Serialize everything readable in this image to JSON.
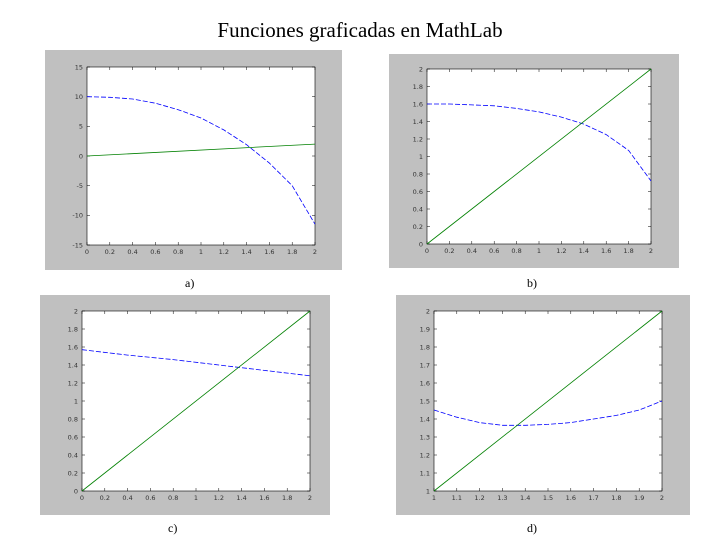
{
  "page": {
    "title": "Funciones graficadas en MathLab"
  },
  "chart_data": [
    {
      "type": "line",
      "caption": "a)",
      "xlim": [
        0,
        2
      ],
      "ylim": [
        -15,
        15
      ],
      "xticks": [
        0,
        0.2,
        0.4,
        0.6,
        0.8,
        1,
        1.2,
        1.4,
        1.6,
        1.8,
        2
      ],
      "xtick_labels": [
        "0",
        "0.2",
        "0.4",
        "0.6",
        "0.8",
        "1",
        "1.2",
        "1.4",
        "1.6",
        "1.8",
        "2"
      ],
      "yticks": [
        -15,
        -10,
        -5,
        0,
        5,
        10,
        15
      ],
      "ytick_labels": [
        "-15",
        "-10",
        "-5",
        "0",
        "5",
        "10",
        "15"
      ],
      "grid": false,
      "series": [
        {
          "color": "#0000ff",
          "style": "dashed",
          "x": [
            0,
            0.2,
            0.4,
            0.6,
            0.8,
            1.0,
            1.2,
            1.4,
            1.6,
            1.8,
            2.0
          ],
          "y": [
            10.0,
            9.9,
            9.6,
            8.9,
            7.8,
            6.4,
            4.4,
            1.9,
            -1.2,
            -5.0,
            -11.5
          ]
        },
        {
          "color": "#008000",
          "style": "solid",
          "x": [
            0,
            2
          ],
          "y": [
            0,
            2
          ]
        }
      ]
    },
    {
      "type": "line",
      "caption": "b)",
      "xlim": [
        0,
        2
      ],
      "ylim": [
        0,
        2
      ],
      "xticks": [
        0,
        0.2,
        0.4,
        0.6,
        0.8,
        1,
        1.2,
        1.4,
        1.6,
        1.8,
        2
      ],
      "xtick_labels": [
        "0",
        "0.2",
        "0.4",
        "0.6",
        "0.8",
        "1",
        "1.2",
        "1.4",
        "1.6",
        "1.8",
        "2"
      ],
      "yticks": [
        0,
        0.2,
        0.4,
        0.6,
        0.8,
        1,
        1.2,
        1.4,
        1.6,
        1.8,
        2
      ],
      "ytick_labels": [
        "0",
        "0.2",
        "0.4",
        "0.6",
        "0.8",
        "1",
        "1.2",
        "1.4",
        "1.6",
        "1.8",
        "2"
      ],
      "grid": false,
      "series": [
        {
          "color": "#0000ff",
          "style": "dashed",
          "x": [
            0,
            0.2,
            0.4,
            0.6,
            0.8,
            1.0,
            1.2,
            1.4,
            1.6,
            1.8,
            2.0
          ],
          "y": [
            1.6,
            1.6,
            1.59,
            1.58,
            1.55,
            1.51,
            1.45,
            1.37,
            1.25,
            1.07,
            0.72
          ]
        },
        {
          "color": "#008000",
          "style": "solid",
          "x": [
            0,
            2
          ],
          "y": [
            0,
            2
          ]
        }
      ]
    },
    {
      "type": "line",
      "caption": "c)",
      "xlim": [
        0,
        2
      ],
      "ylim": [
        0,
        2
      ],
      "xticks": [
        0,
        0.2,
        0.4,
        0.6,
        0.8,
        1,
        1.2,
        1.4,
        1.6,
        1.8,
        2
      ],
      "xtick_labels": [
        "0",
        "0.2",
        "0.4",
        "0.6",
        "0.8",
        "1",
        "1.2",
        "1.4",
        "1.6",
        "1.8",
        "2"
      ],
      "yticks": [
        0,
        0.2,
        0.4,
        0.6,
        0.8,
        1,
        1.2,
        1.4,
        1.6,
        1.8,
        2
      ],
      "ytick_labels": [
        "0",
        "0.2",
        "0.4",
        "0.6",
        "0.8",
        "1",
        "1.2",
        "1.4",
        "1.6",
        "1.8",
        "2"
      ],
      "grid": false,
      "series": [
        {
          "color": "#0000ff",
          "style": "dashed",
          "x": [
            0,
            0.4,
            0.8,
            1.2,
            1.6,
            2.0
          ],
          "y": [
            1.57,
            1.51,
            1.46,
            1.4,
            1.34,
            1.28
          ]
        },
        {
          "color": "#008000",
          "style": "solid",
          "x": [
            0,
            2
          ],
          "y": [
            0,
            2
          ]
        }
      ]
    },
    {
      "type": "line",
      "caption": "d)",
      "xlim": [
        1,
        2
      ],
      "ylim": [
        1,
        2
      ],
      "xticks": [
        1,
        1.1,
        1.2,
        1.3,
        1.4,
        1.5,
        1.6,
        1.7,
        1.8,
        1.9,
        2
      ],
      "xtick_labels": [
        "1",
        "1.1",
        "1.2",
        "1.3",
        "1.4",
        "1.5",
        "1.6",
        "1.7",
        "1.8",
        "1.9",
        "2"
      ],
      "yticks": [
        1,
        1.1,
        1.2,
        1.3,
        1.4,
        1.5,
        1.6,
        1.7,
        1.8,
        1.9,
        2
      ],
      "ytick_labels": [
        "1",
        "1.1",
        "1.2",
        "1.3",
        "1.4",
        "1.5",
        "1.6",
        "1.7",
        "1.8",
        "1.9",
        "2"
      ],
      "grid": false,
      "series": [
        {
          "color": "#0000ff",
          "style": "dashed",
          "x": [
            1.0,
            1.1,
            1.2,
            1.3,
            1.4,
            1.5,
            1.6,
            1.7,
            1.8,
            1.9,
            2.0
          ],
          "y": [
            1.45,
            1.41,
            1.38,
            1.365,
            1.365,
            1.37,
            1.38,
            1.4,
            1.42,
            1.45,
            1.5
          ]
        },
        {
          "color": "#008000",
          "style": "solid",
          "x": [
            1,
            2
          ],
          "y": [
            1,
            2
          ]
        }
      ]
    }
  ]
}
